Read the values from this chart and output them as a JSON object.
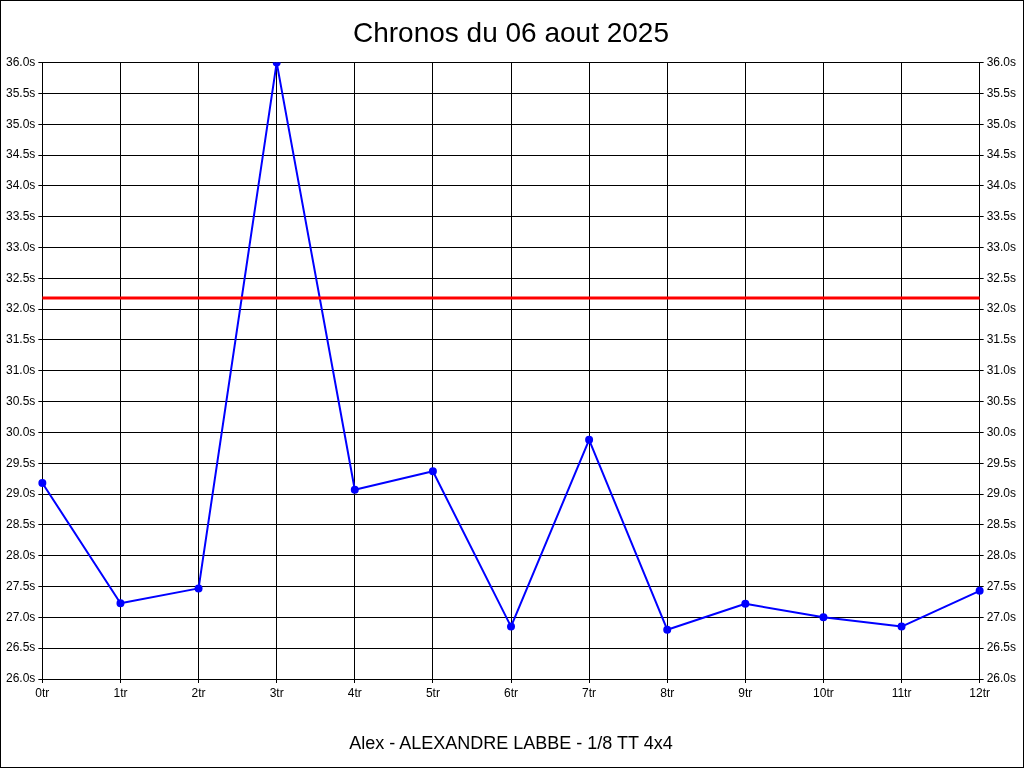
{
  "chart_data": {
    "type": "line",
    "title": "Chronos du 06 aout 2025",
    "xlabel": "Alex - ALEXANDRE LABBE - 1/8 TT 4x4",
    "categories": [
      "0tr",
      "1tr",
      "2tr",
      "3tr",
      "4tr",
      "5tr",
      "6tr",
      "7tr",
      "8tr",
      "9tr",
      "10tr",
      "11tr",
      "12tr"
    ],
    "series": [
      {
        "color": "#0000ff",
        "values": [
          29.18,
          27.23,
          27.47,
          36.0,
          29.07,
          29.37,
          26.85,
          29.88,
          26.8,
          27.22,
          27.0,
          26.85,
          27.43
        ]
      }
    ],
    "ylim": [
      26,
      36
    ],
    "yticks": [
      {
        "value": 26,
        "label": "26.0s"
      },
      {
        "value": 26.5,
        "label": "26.5s"
      },
      {
        "value": 27,
        "label": "27.0s"
      },
      {
        "value": 27.5,
        "label": "27.5s"
      },
      {
        "value": 28,
        "label": "28.0s"
      },
      {
        "value": 28.5,
        "label": "28.5s"
      },
      {
        "value": 29,
        "label": "29.0s"
      },
      {
        "value": 29.5,
        "label": "29.5s"
      },
      {
        "value": 30,
        "label": "30.0s"
      },
      {
        "value": 30.5,
        "label": "30.5s"
      },
      {
        "value": 31,
        "label": "31.0s"
      },
      {
        "value": 31.5,
        "label": "31.5s"
      },
      {
        "value": 32,
        "label": "32.0s"
      },
      {
        "value": 32.5,
        "label": "32.5s"
      },
      {
        "value": 33,
        "label": "33.0s"
      },
      {
        "value": 33.5,
        "label": "33.5s"
      },
      {
        "value": 34,
        "label": "34.0s"
      },
      {
        "value": 34.5,
        "label": "34.5s"
      },
      {
        "value": 35,
        "label": "35.0s"
      },
      {
        "value": 35.5,
        "label": "35.5s"
      },
      {
        "value": 36,
        "label": "36.0s"
      }
    ],
    "y2lim": [
      26,
      36
    ],
    "y2ticks": [
      {
        "value": 26,
        "label": "26.0s"
      },
      {
        "value": 26.5,
        "label": "26.5s"
      },
      {
        "value": 27,
        "label": "27.0s"
      },
      {
        "value": 27.5,
        "label": "27.5s"
      },
      {
        "value": 28,
        "label": "28.0s"
      },
      {
        "value": 28.5,
        "label": "28.5s"
      },
      {
        "value": 29,
        "label": "29.0s"
      },
      {
        "value": 29.5,
        "label": "29.5s"
      },
      {
        "value": 30,
        "label": "30.0s"
      },
      {
        "value": 30.5,
        "label": "30.5s"
      },
      {
        "value": 31,
        "label": "31.0s"
      },
      {
        "value": 31.5,
        "label": "31.5s"
      },
      {
        "value": 32,
        "label": "32.0s"
      },
      {
        "value": 32.5,
        "label": "32.5s"
      },
      {
        "value": 33,
        "label": "33.0s"
      },
      {
        "value": 33.5,
        "label": "33.5s"
      },
      {
        "value": 34,
        "label": "34.0s"
      },
      {
        "value": 34.5,
        "label": "34.5s"
      },
      {
        "value": 35,
        "label": "35.0s"
      },
      {
        "value": 35.5,
        "label": "35.5s"
      },
      {
        "value": 36,
        "label": "36.0s"
      }
    ],
    "ref_lines": [
      {
        "axis": "y",
        "value": 32.18,
        "color": "#ff0000"
      }
    ],
    "grid": true,
    "legend": false,
    "marker": "circle",
    "line_style": "solid"
  }
}
